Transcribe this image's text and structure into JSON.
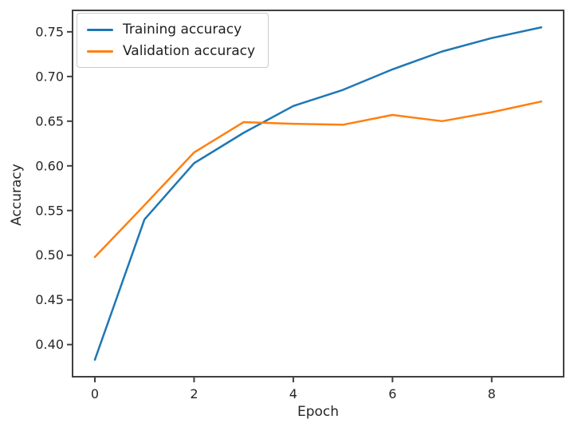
{
  "figure": {
    "background_color": "#ffffff",
    "spine_color": "#404040",
    "text_color": "#262626"
  },
  "chart_data": {
    "type": "line",
    "title": "",
    "xlabel": "Epoch",
    "ylabel": "Accuracy",
    "x": [
      0,
      1,
      2,
      3,
      4,
      5,
      6,
      7,
      8,
      9
    ],
    "series": [
      {
        "name": "Training accuracy",
        "color": "#1f77b4",
        "values": [
          0.383,
          0.54,
          0.603,
          0.637,
          0.667,
          0.685,
          0.708,
          0.728,
          0.743,
          0.755
        ]
      },
      {
        "name": "Validation accuracy",
        "color": "#ff7f0e",
        "values": [
          0.498,
          0.556,
          0.615,
          0.649,
          0.647,
          0.646,
          0.657,
          0.65,
          0.66,
          0.672
        ]
      }
    ],
    "xlim": [
      -0.45,
      9.45
    ],
    "ylim": [
      0.364,
      0.774
    ],
    "xticks": [
      0,
      2,
      4,
      6,
      8
    ],
    "xtick_labels": [
      "0",
      "2",
      "4",
      "6",
      "8"
    ],
    "yticks": [
      0.4,
      0.45,
      0.5,
      0.55,
      0.6,
      0.65,
      0.7,
      0.75
    ],
    "ytick_labels": [
      "0.40",
      "0.45",
      "0.50",
      "0.55",
      "0.60",
      "0.65",
      "0.70",
      "0.75"
    ],
    "grid": false,
    "legend_position": "upper left"
  }
}
